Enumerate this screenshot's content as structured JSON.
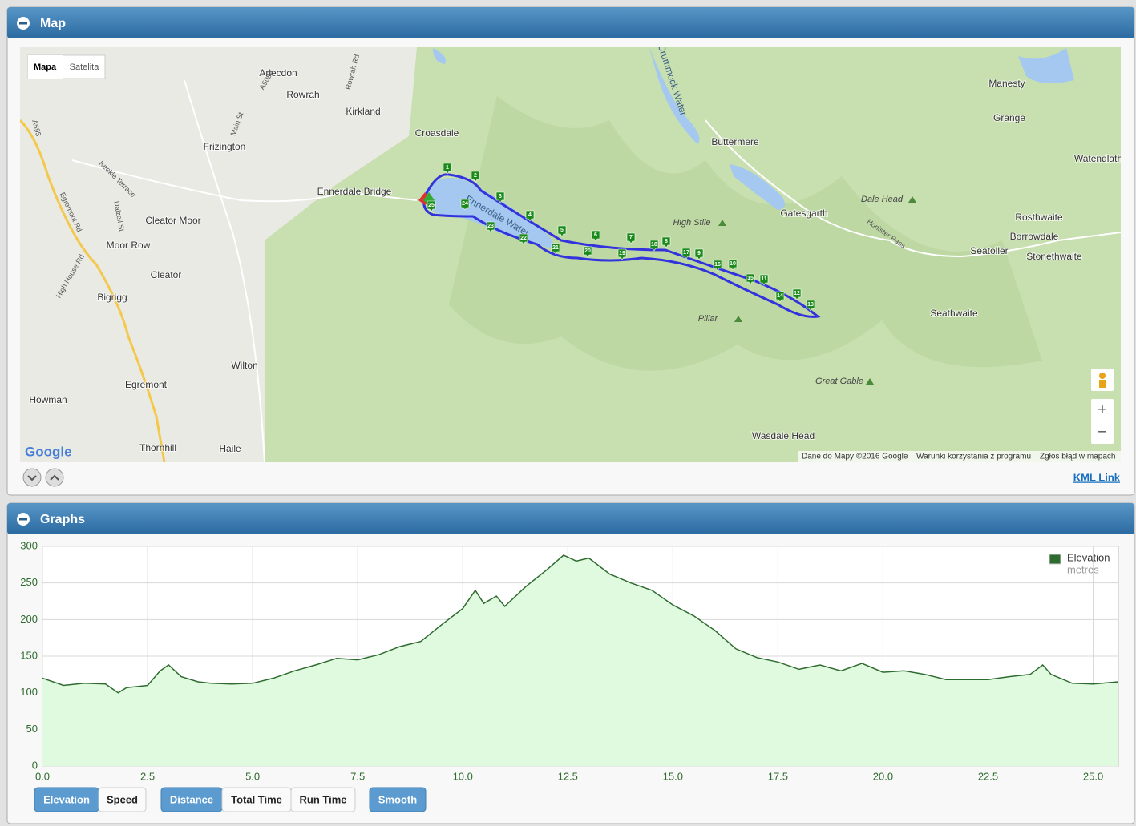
{
  "map_panel": {
    "title": "Map",
    "map_type_buttons": [
      "Mapa",
      "Satelita"
    ],
    "places": [
      "Arlecdon",
      "Rowrah",
      "Kirkland",
      "Croasdale",
      "Frizington",
      "Ennerdale Bridge",
      "Cleator Moor",
      "Moor Row",
      "Cleator",
      "Bigrigg",
      "Egremont",
      "Wilton",
      "Howman",
      "Thornhill",
      "Haile",
      "Buttermere",
      "Gatesgarth",
      "Wasdale Head",
      "Manesty",
      "Grange",
      "Watendlath",
      "Rosthwaite",
      "Borrowdale",
      "Seatoller",
      "Stonethwaite",
      "Seathwaite"
    ],
    "fells": [
      "Dale Head",
      "High Stile",
      "Pillar",
      "Great Gable"
    ],
    "waters": [
      "Crummock Water",
      "Ennerdale Water"
    ],
    "roads": [
      "A5086",
      "Main St",
      "Rowrah Rd",
      "A595",
      "Keekle Terrace",
      "Dalzell St",
      "Egremont Rd",
      "High House Rd",
      "Honister Pass"
    ],
    "waypoints": [
      1,
      2,
      3,
      4,
      5,
      6,
      7,
      8,
      9,
      10,
      11,
      12,
      13,
      14,
      15,
      16,
      17,
      18,
      19,
      20,
      21,
      22,
      23,
      24,
      25
    ],
    "logo": "Google",
    "attribution": "Dane do Mapy ©2016 Google",
    "terms": "Warunki korzystania z programu",
    "report": "Zgłoś błąd w mapach",
    "zoom_in": "+",
    "zoom_out": "−",
    "kml_link": "KML Link"
  },
  "graphs_panel": {
    "title": "Graphs",
    "button_groups": [
      [
        {
          "label": "Elevation",
          "active": true
        },
        {
          "label": "Speed",
          "active": false
        }
      ],
      [
        {
          "label": "Distance",
          "active": true
        },
        {
          "label": "Total Time",
          "active": false
        },
        {
          "label": "Run Time",
          "active": false
        }
      ],
      [
        {
          "label": "Smooth",
          "active": true
        }
      ]
    ]
  },
  "chart_data": {
    "type": "area",
    "x": [
      0,
      0.5,
      1.0,
      1.5,
      1.8,
      2.0,
      2.5,
      2.8,
      3.0,
      3.3,
      3.7,
      4.0,
      4.5,
      5.0,
      5.5,
      6.0,
      6.5,
      7.0,
      7.5,
      8.0,
      8.5,
      9.0,
      9.5,
      10.0,
      10.3,
      10.5,
      10.8,
      11.0,
      11.5,
      12.0,
      12.4,
      12.7,
      13.0,
      13.5,
      14.0,
      14.5,
      15.0,
      15.5,
      16.0,
      16.5,
      17.0,
      17.5,
      18.0,
      18.5,
      19.0,
      19.5,
      20.0,
      20.5,
      21.0,
      21.5,
      22.0,
      22.5,
      23.0,
      23.5,
      23.8,
      24.0,
      24.5,
      25.0,
      25.6
    ],
    "series": [
      {
        "name": "Elevation",
        "unit": "metres",
        "color": "#2e6b2e",
        "fill": "#e0fae0",
        "values": [
          120,
          110,
          113,
          112,
          100,
          107,
          110,
          130,
          138,
          122,
          115,
          113,
          112,
          113,
          120,
          130,
          138,
          147,
          145,
          152,
          163,
          170,
          193,
          215,
          240,
          222,
          232,
          218,
          245,
          268,
          288,
          280,
          284,
          262,
          250,
          240,
          220,
          205,
          185,
          160,
          148,
          142,
          132,
          138,
          130,
          140,
          128,
          130,
          125,
          118,
          118,
          118,
          122,
          125,
          138,
          125,
          113,
          112,
          115
        ]
      }
    ],
    "xlim": [
      0,
      25.6
    ],
    "ylim": [
      0,
      300
    ],
    "xticks": [
      {
        "value": 0,
        "label": "0.0"
      },
      {
        "value": 2.5,
        "label": "2.5"
      },
      {
        "value": 5,
        "label": "5.0"
      },
      {
        "value": 7.5,
        "label": "7.5"
      },
      {
        "value": 10,
        "label": "10.0"
      },
      {
        "value": 12.5,
        "label": "12.5"
      },
      {
        "value": 15,
        "label": "15.0"
      },
      {
        "value": 17.5,
        "label": "17.5"
      },
      {
        "value": 20,
        "label": "20.0"
      },
      {
        "value": 22.5,
        "label": "22.5"
      },
      {
        "value": 25,
        "label": "25.0"
      }
    ],
    "yticks": [
      0,
      50,
      100,
      150,
      200,
      250,
      300
    ],
    "grid": true,
    "legend": "top-right"
  }
}
